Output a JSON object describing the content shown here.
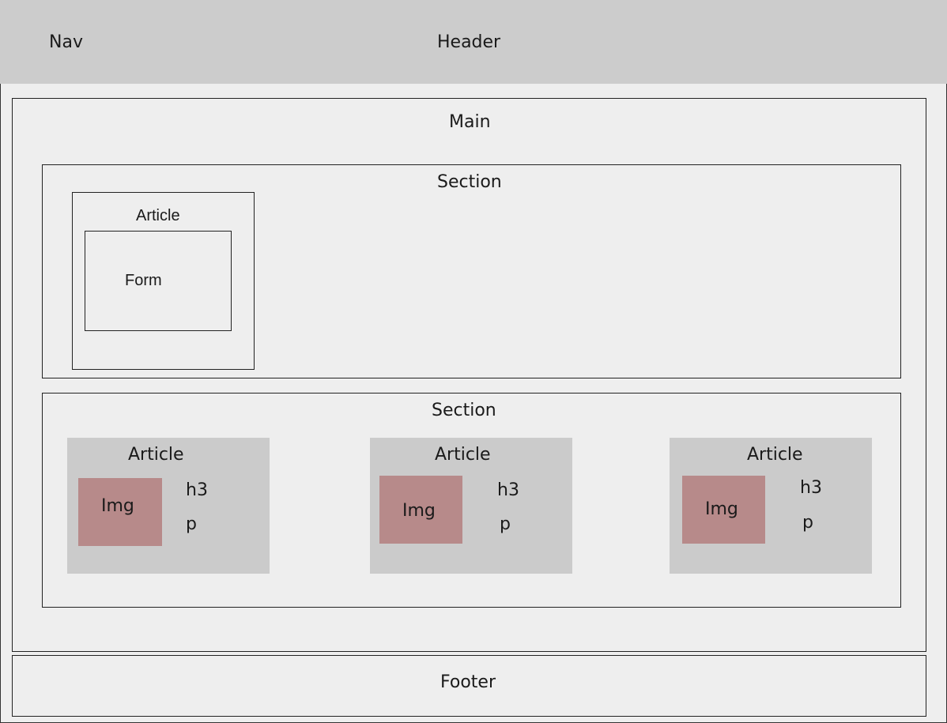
{
  "header": {
    "nav_label": "Nav",
    "title": "Header"
  },
  "main": {
    "title": "Main",
    "section1": {
      "title": "Section",
      "article": {
        "title": "Article",
        "form_label": "Form"
      }
    },
    "section2": {
      "title": "Section",
      "articles": [
        {
          "title": "Article",
          "img_label": "Img",
          "h3_label": "h3",
          "p_label": "p"
        },
        {
          "title": "Article",
          "img_label": "Img",
          "h3_label": "h3",
          "p_label": "p"
        },
        {
          "title": "Article",
          "img_label": "Img",
          "h3_label": "h3",
          "p_label": "p"
        }
      ]
    }
  },
  "footer": {
    "title": "Footer"
  },
  "colors": {
    "header_bg": "#cccccc",
    "page_bg": "#eeeeee",
    "card_bg": "#cbcbcb",
    "img_bg": "#b78a8a"
  }
}
